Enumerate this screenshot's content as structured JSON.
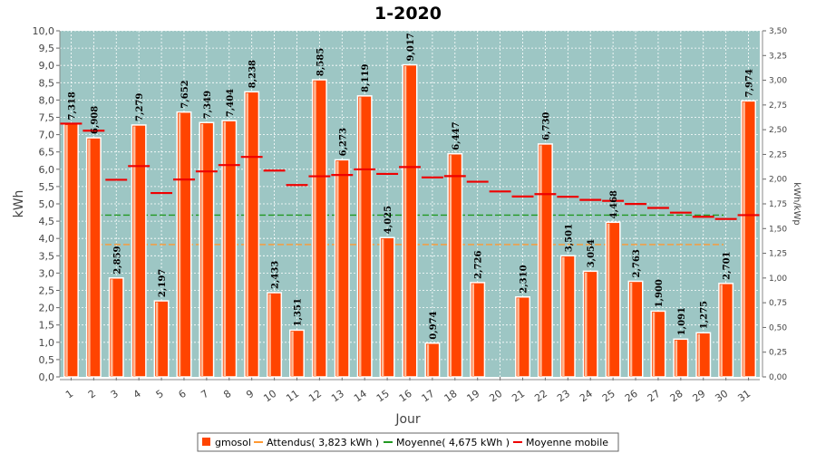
{
  "chart_data": {
    "type": "bar",
    "title": "1-2020",
    "xlabel": "Jour",
    "ylabel": "kWh",
    "y2label": "kWh/kWp",
    "ylim": [
      0,
      10.0
    ],
    "y2lim": [
      0,
      3.5
    ],
    "categories": [
      "1",
      "2",
      "3",
      "4",
      "5",
      "6",
      "7",
      "8",
      "9",
      "10",
      "11",
      "12",
      "13",
      "14",
      "15",
      "16",
      "17",
      "18",
      "19",
      "20",
      "21",
      "22",
      "23",
      "24",
      "25",
      "26",
      "27",
      "28",
      "29",
      "30",
      "31"
    ],
    "series": [
      {
        "name": "gmosol",
        "type": "bar",
        "color": "#ff4400",
        "values": [
          7.318,
          6.908,
          2.859,
          7.279,
          2.197,
          7.652,
          7.349,
          7.404,
          8.238,
          2.433,
          1.351,
          8.585,
          6.273,
          8.119,
          4.025,
          9.017,
          0.974,
          6.447,
          2.726,
          null,
          2.31,
          6.73,
          3.501,
          3.054,
          4.468,
          2.763,
          1.9,
          1.091,
          1.275,
          2.701,
          7.974
        ],
        "labels": [
          "7,318",
          "6,908",
          "2,859",
          "7,279",
          "2,197",
          "7,652",
          "7,349",
          "7,404",
          "8,238",
          "2,433",
          "1,351",
          "8,585",
          "6,273",
          "8,119",
          "4,025",
          "9,017",
          "0,974",
          "6,447",
          "2,726",
          "",
          "2,310",
          "6,730",
          "3,501",
          "3,054",
          "4,468",
          "2,763",
          "1,900",
          "1,091",
          "1,275",
          "2,701",
          "7,974"
        ]
      },
      {
        "name": "Attendus( 3,823 kWh )",
        "type": "line",
        "color": "#ff9933",
        "value": 3.823
      },
      {
        "name": "Moyenne( 4,675 kWh )",
        "type": "line",
        "color": "#229922",
        "value": 4.675
      },
      {
        "name": "Moyenne mobile",
        "type": "step",
        "color": "#ee0000",
        "values": [
          7.318,
          7.113,
          5.695,
          6.091,
          5.313,
          5.703,
          5.938,
          6.121,
          6.356,
          5.963,
          5.544,
          5.797,
          5.834,
          5.997,
          5.866,
          6.063,
          5.764,
          5.802,
          5.64,
          5.358,
          5.213,
          5.282,
          5.204,
          5.114,
          5.087,
          4.997,
          4.882,
          4.746,
          4.627,
          4.563,
          4.674
        ]
      }
    ],
    "y_ticks": [
      "0,0",
      "0,5",
      "1,0",
      "1,5",
      "2,0",
      "2,5",
      "3,0",
      "3,5",
      "4,0",
      "4,5",
      "5,0",
      "5,5",
      "6,0",
      "6,5",
      "7,0",
      "7,5",
      "8,0",
      "8,5",
      "9,0",
      "9,5",
      "10,0"
    ],
    "y2_ticks": [
      "0,00",
      "0,25",
      "0,50",
      "0,75",
      "1,00",
      "1,25",
      "1,50",
      "1,75",
      "2,00",
      "2,25",
      "2,50",
      "2,75",
      "3,00",
      "3,25",
      "3,50"
    ],
    "grid": true,
    "legend_position": "bottom"
  }
}
